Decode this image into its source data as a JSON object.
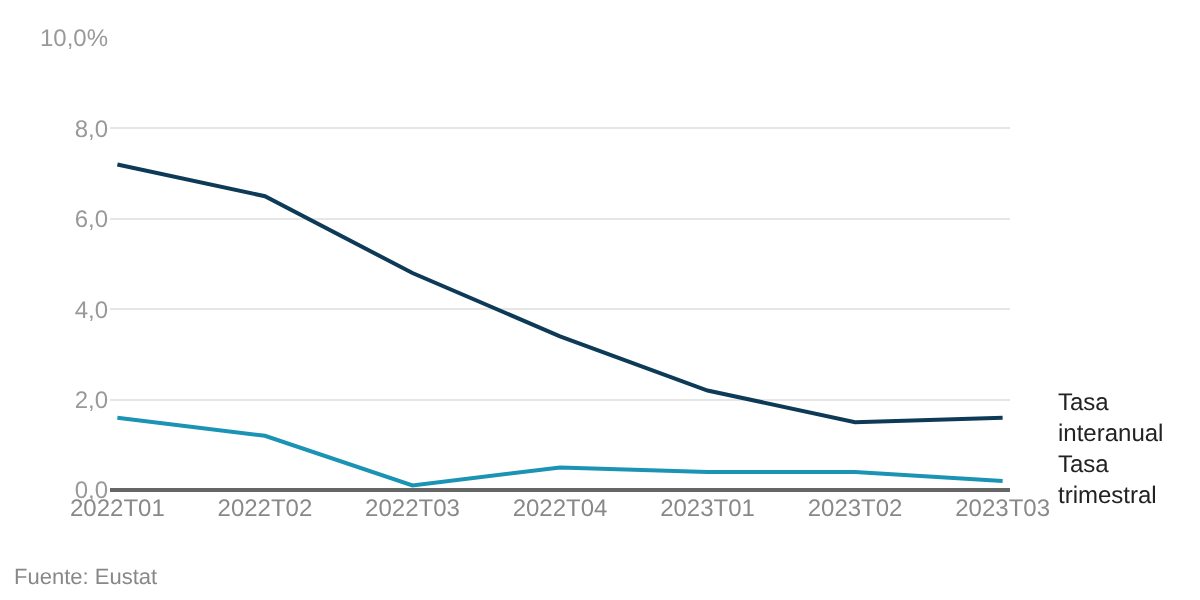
{
  "chart_data": {
    "type": "line",
    "categories": [
      "2022T01",
      "2022T02",
      "2022T03",
      "2022T04",
      "2023T01",
      "2023T02",
      "2023T03"
    ],
    "series": [
      {
        "name": "Tasa interanual",
        "color": "#0d3b57",
        "values": [
          7.2,
          6.5,
          4.8,
          3.4,
          2.2,
          1.5,
          1.6
        ]
      },
      {
        "name": "Tasa trimestral",
        "color": "#1a93b5",
        "values": [
          1.6,
          1.2,
          0.1,
          0.5,
          0.4,
          0.4,
          0.2
        ]
      }
    ],
    "ylim": [
      0,
      10
    ],
    "yticks": [
      {
        "value": 0,
        "label": "0,0"
      },
      {
        "value": 2,
        "label": "2,0"
      },
      {
        "value": 4,
        "label": "4,0"
      },
      {
        "value": 6,
        "label": "6,0"
      },
      {
        "value": 8,
        "label": "8,0"
      },
      {
        "value": 10,
        "label": "10,0%"
      }
    ],
    "grid": "y",
    "legend": false,
    "marker": "none",
    "line_style": "solid",
    "annotations": [
      "Fuente: Eustat"
    ]
  }
}
